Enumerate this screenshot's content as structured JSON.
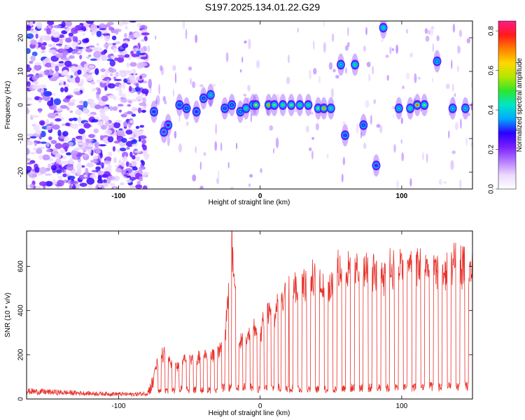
{
  "page": {
    "title": "S197.2025.134.01.22.G29"
  },
  "colors": {
    "snr_line": "#e8322c",
    "colorbar": [
      "#ffffff",
      "#ecd9ff",
      "#b37aff",
      "#7a1fff",
      "#2b00ff",
      "#00a8ff",
      "#00e6c8",
      "#2ce62c",
      "#b4e600",
      "#ffd700",
      "#ff8000",
      "#ff1a1a",
      "#ff1a8c"
    ]
  },
  "chart_data": [
    {
      "type": "heatmap",
      "title": "",
      "xlabel": "Height of straight line (km)",
      "ylabel": "Frequency (Hz)",
      "xlim": [
        -165,
        150
      ],
      "ylim": [
        -25,
        25
      ],
      "xticks": [
        -100,
        0,
        100
      ],
      "yticks": [
        -20,
        -10,
        0,
        10,
        20
      ],
      "colorbar": {
        "label": "Normalized spectral amplitude",
        "range": [
          0.0,
          0.85
        ],
        "ticks": [
          0.0,
          0.2,
          0.4,
          0.6,
          0.8
        ]
      },
      "noise_region_x": [
        -165,
        -80
      ],
      "features": [
        {
          "x": -75,
          "y": -2,
          "amp": 0.3
        },
        {
          "x": -65,
          "y": -6,
          "amp": 0.28
        },
        {
          "x": -68,
          "y": -8,
          "amp": 0.25
        },
        {
          "x": -57,
          "y": 0,
          "amp": 0.32
        },
        {
          "x": -52,
          "y": -1,
          "amp": 0.35
        },
        {
          "x": -45,
          "y": -2,
          "amp": 0.3
        },
        {
          "x": -40,
          "y": 2,
          "amp": 0.34
        },
        {
          "x": -35,
          "y": 3,
          "amp": 0.45
        },
        {
          "x": -25,
          "y": -1,
          "amp": 0.33
        },
        {
          "x": -20,
          "y": 0,
          "amp": 0.36
        },
        {
          "x": -14,
          "y": -2,
          "amp": 0.4
        },
        {
          "x": -10,
          "y": -1,
          "amp": 0.5
        },
        {
          "x": -5,
          "y": 0,
          "amp": 0.48
        },
        {
          "x": -3,
          "y": 0,
          "amp": 0.62
        },
        {
          "x": 6,
          "y": 0,
          "amp": 0.7
        },
        {
          "x": 10,
          "y": 0,
          "amp": 0.55
        },
        {
          "x": 16,
          "y": 0,
          "amp": 0.52
        },
        {
          "x": 22,
          "y": 0,
          "amp": 0.55
        },
        {
          "x": 28,
          "y": 0,
          "amp": 0.5
        },
        {
          "x": 34,
          "y": 0,
          "amp": 0.5
        },
        {
          "x": 41,
          "y": -1,
          "amp": 0.55
        },
        {
          "x": 45,
          "y": -1,
          "amp": 0.72
        },
        {
          "x": 50,
          "y": -1,
          "amp": 0.48
        },
        {
          "x": 57,
          "y": 12,
          "amp": 0.45
        },
        {
          "x": 60,
          "y": -9,
          "amp": 0.32
        },
        {
          "x": 67,
          "y": 12,
          "amp": 0.5
        },
        {
          "x": 73,
          "y": -6,
          "amp": 0.35
        },
        {
          "x": 82,
          "y": -18,
          "amp": 0.3
        },
        {
          "x": 87,
          "y": 23,
          "amp": 0.48
        },
        {
          "x": 98,
          "y": -1,
          "amp": 0.45
        },
        {
          "x": 106,
          "y": -1,
          "amp": 0.5
        },
        {
          "x": 111,
          "y": 0,
          "amp": 0.8
        },
        {
          "x": 116,
          "y": 0,
          "amp": 0.55
        },
        {
          "x": 125,
          "y": 13,
          "amp": 0.42
        },
        {
          "x": 136,
          "y": -1,
          "amp": 0.45
        },
        {
          "x": 145,
          "y": -1,
          "amp": 0.45
        }
      ]
    },
    {
      "type": "line",
      "title": "",
      "xlabel": "Height of straight line (km)",
      "ylabel": "SNR (10 * v/v)",
      "xlim": [
        -165,
        150
      ],
      "ylim": [
        0,
        760
      ],
      "xticks": [
        -100,
        0,
        100
      ],
      "yticks": [
        0,
        200,
        400,
        600
      ],
      "series": [
        {
          "x": [
            -165,
            -150,
            -120,
            -90,
            -80,
            -72,
            -68,
            -60,
            -55,
            -45,
            -35,
            -25,
            -20,
            -15,
            -10,
            -5,
            0,
            5,
            10,
            15,
            20,
            30,
            40,
            50,
            55,
            60,
            70,
            80,
            90,
            100,
            110,
            120,
            130,
            140,
            150
          ],
          "peak": [
            50,
            45,
            35,
            30,
            35,
            190,
            230,
            150,
            200,
            210,
            220,
            280,
            760,
            280,
            330,
            350,
            330,
            440,
            440,
            510,
            580,
            580,
            600,
            570,
            650,
            640,
            650,
            640,
            660,
            680,
            690,
            660,
            640,
            690,
            650
          ],
          "trough": [
            20,
            18,
            15,
            12,
            15,
            30,
            40,
            40,
            45,
            40,
            40,
            50,
            50,
            45,
            60,
            50,
            45,
            50,
            50,
            50,
            50,
            45,
            45,
            45,
            45,
            50,
            50,
            50,
            50,
            50,
            55,
            55,
            55,
            55,
            60
          ]
        }
      ]
    }
  ]
}
